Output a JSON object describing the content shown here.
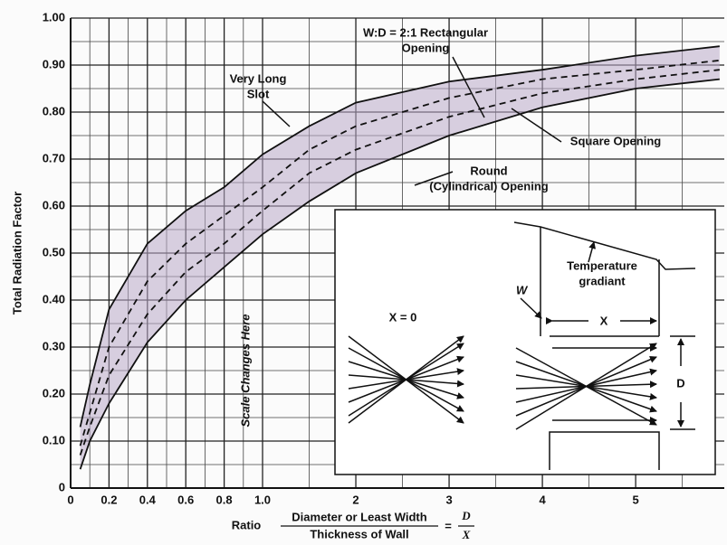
{
  "chart_data": {
    "type": "line",
    "y_label": "Total Radiation Factor",
    "x_label": {
      "prefix": "Ratio",
      "numerator": "Diameter or Least Width",
      "denominator": "Thickness of Wall",
      "equals": "=",
      "symbol_numerator": "D",
      "symbol_denominator": "X"
    },
    "x_scale_break": {
      "value": 1,
      "label": "Scale Changes Here"
    },
    "x": [
      0.05,
      0.1,
      0.2,
      0.4,
      0.6,
      0.8,
      1.0,
      1.5,
      2,
      3,
      4,
      5,
      5.9
    ],
    "series": [
      {
        "color": "#111111",
        "dash": false,
        "values": [
          0.13,
          0.22,
          0.38,
          0.52,
          0.59,
          0.64,
          0.71,
          0.77,
          0.82,
          0.865,
          0.89,
          0.92,
          0.94
        ]
      },
      {
        "color": "#111111",
        "dash": true,
        "values": [
          0.09,
          0.16,
          0.3,
          0.44,
          0.52,
          0.58,
          0.64,
          0.72,
          0.77,
          0.83,
          0.87,
          0.89,
          0.91
        ]
      },
      {
        "color": "#111111",
        "dash": true,
        "values": [
          0.07,
          0.13,
          0.24,
          0.37,
          0.46,
          0.52,
          0.59,
          0.67,
          0.72,
          0.79,
          0.84,
          0.87,
          0.89
        ]
      },
      {
        "color": "#111111",
        "dash": false,
        "values": [
          0.04,
          0.1,
          0.18,
          0.31,
          0.4,
          0.47,
          0.54,
          0.61,
          0.67,
          0.75,
          0.81,
          0.85,
          0.87
        ]
      }
    ],
    "band_color": "#b9a9c9",
    "xlim": [
      0,
      5.95
    ],
    "ylim": [
      0,
      1.0
    ],
    "xticks": [
      0,
      0.2,
      0.4,
      0.6,
      0.8,
      {
        "value": 1,
        "label": "1.0"
      },
      2,
      3,
      4,
      5
    ],
    "yticks": [
      0,
      {
        "value": 0.1,
        "label": "0.10"
      },
      {
        "value": 0.2,
        "label": "0.20"
      },
      {
        "value": 0.3,
        "label": "0.30"
      },
      {
        "value": 0.4,
        "label": "0.40"
      },
      {
        "value": 0.5,
        "label": "0.50"
      },
      {
        "value": 0.6,
        "label": "0.60"
      },
      {
        "value": 0.7,
        "label": "0.70"
      },
      {
        "value": 0.8,
        "label": "0.80"
      },
      {
        "value": 0.9,
        "label": "0.90"
      },
      {
        "value": 1,
        "label": "1.00"
      }
    ],
    "x_minor_ticks": [
      0.1,
      0.3,
      0.5,
      0.7,
      0.9,
      1.5,
      2.5,
      3.5,
      4.5,
      5.5
    ],
    "y_minor_ticks": [
      0.05,
      0.15,
      0.25,
      0.35,
      0.45,
      0.55,
      0.65,
      0.75,
      0.85,
      0.95
    ],
    "grid": true,
    "annotations": [
      {
        "lines": [
          "W:D = 2:1 Rectangular",
          "Opening"
        ]
      },
      {
        "lines": [
          "Very Long",
          "Slot"
        ]
      },
      {
        "lines": [
          "Square Opening"
        ]
      },
      {
        "lines": [
          "Round",
          "(Cylindrical) Opening"
        ]
      }
    ],
    "inset": {
      "temperature": [
        "Temperature",
        "gradiant"
      ],
      "w": "W",
      "x": "X",
      "x_zero": "X = 0",
      "d": "D"
    }
  }
}
